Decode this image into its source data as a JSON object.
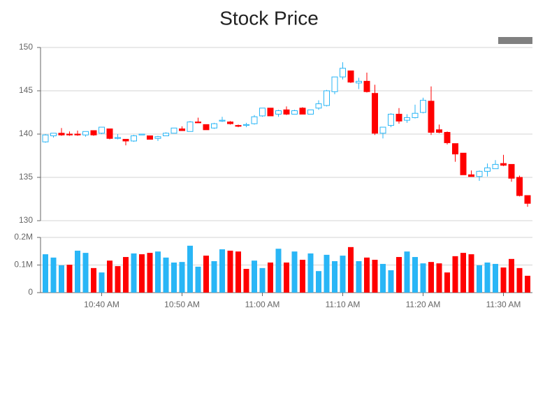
{
  "chart_data": {
    "type": "candlestick",
    "title": "Stock Price",
    "categories": [
      null,
      null,
      null,
      null,
      null,
      null,
      null,
      "10:40 AM",
      null,
      null,
      null,
      null,
      null,
      null,
      null,
      null,
      null,
      "10:50 AM",
      null,
      null,
      null,
      null,
      null,
      null,
      null,
      null,
      null,
      "11:00 AM",
      null,
      null,
      null,
      null,
      null,
      null,
      null,
      null,
      null,
      "11:10 AM",
      null,
      null,
      null,
      null,
      null,
      null,
      null,
      null,
      null,
      "11:20 AM",
      null,
      null,
      null,
      null,
      null,
      null,
      null,
      null,
      null,
      "11:30 AM",
      null,
      null,
      null
    ],
    "open": [
      139.1,
      139.8,
      140.1,
      140,
      140,
      139.9,
      140.4,
      140.1,
      140.6,
      139.5,
      139.4,
      139.2,
      139.9,
      139.8,
      139.5,
      139.8,
      140.1,
      140.6,
      140.3,
      141.4,
      141.1,
      140.7,
      141.5,
      141.4,
      141,
      141,
      141.2,
      142.1,
      143,
      142.3,
      142.8,
      142.3,
      143,
      142.3,
      143,
      143.3,
      144.9,
      146.6,
      147.3,
      145.9,
      146.1,
      144.7,
      140.1,
      141,
      142.3,
      141.6,
      141.9,
      142.5,
      143.8,
      140.5,
      140.2,
      138.9,
      137.8,
      135.3,
      135.1,
      135.7,
      136,
      136.6,
      136.5,
      135,
      132.9
    ],
    "high": [
      140,
      140.1,
      140.7,
      140.3,
      140.4,
      140.3,
      140.4,
      140.8,
      140.6,
      140,
      139.4,
      139.9,
      140,
      139.8,
      139.8,
      140.2,
      140.7,
      140.9,
      141.5,
      141.9,
      141.1,
      141.3,
      142,
      141.5,
      141.1,
      141.3,
      142.2,
      143,
      143,
      142.8,
      143.2,
      142.8,
      143.1,
      142.8,
      143.9,
      145.1,
      146.6,
      148.3,
      147.3,
      146.5,
      147.1,
      145.7,
      140.8,
      142.4,
      143,
      142.3,
      143.4,
      144.2,
      145.5,
      141.1,
      140.3,
      138.9,
      137.8,
      135.8,
      135.8,
      136.6,
      137,
      137.6,
      136.5,
      135.2,
      132.9
    ],
    "low": [
      139,
      139.6,
      139.8,
      139.8,
      139.8,
      139.7,
      139.8,
      140,
      139.4,
      139.4,
      138.7,
      139.1,
      139.9,
      139.4,
      139.2,
      139.8,
      140.1,
      140.4,
      140.3,
      141.3,
      140.5,
      140.6,
      141.4,
      141.1,
      140.8,
      140.8,
      141.1,
      142,
      142.1,
      142,
      142.2,
      142.3,
      142.3,
      142.3,
      142.8,
      143.2,
      144.6,
      146.3,
      145.9,
      145.2,
      144.8,
      139.9,
      139.5,
      140.8,
      141.2,
      141.3,
      141.8,
      142.4,
      139.9,
      140.1,
      138.8,
      136.8,
      135.3,
      135.1,
      134.6,
      135.1,
      136,
      136.3,
      134.5,
      132.8,
      131.6
    ],
    "close": [
      139.9,
      140.1,
      139.9,
      139.9,
      139.9,
      140.3,
      139.9,
      140.8,
      139.5,
      139.6,
      139.2,
      139.8,
      140,
      139.4,
      139.7,
      140.1,
      140.7,
      140.4,
      141.4,
      141.3,
      140.5,
      141.2,
      141.6,
      141.2,
      140.9,
      141.1,
      142,
      143,
      142.1,
      142.7,
      142.3,
      142.7,
      142.3,
      142.8,
      143.5,
      145,
      146.6,
      147.6,
      146,
      146.1,
      144.9,
      140.1,
      140.8,
      142.3,
      141.5,
      141.9,
      142.4,
      143.9,
      140.2,
      140.2,
      139,
      137.7,
      135.3,
      135.1,
      135.7,
      136.1,
      136.5,
      136.4,
      134.9,
      132.9,
      132
    ],
    "up_color": "#29b6f6",
    "down_color": "#ff0000",
    "ylim": [
      130,
      150
    ],
    "yticks": [
      130,
      135,
      140,
      145,
      150
    ],
    "grid": true,
    "volume": {
      "values": [
        139000,
        127000,
        99000,
        101000,
        152000,
        144000,
        89000,
        73000,
        116000,
        96000,
        129000,
        142000,
        139000,
        144000,
        149000,
        127000,
        109000,
        111000,
        170000,
        94000,
        134000,
        114000,
        157000,
        152000,
        149000,
        86000,
        116000,
        89000,
        109000,
        159000,
        109000,
        149000,
        119000,
        142000,
        78000,
        137000,
        114000,
        134000,
        165000,
        114000,
        127000,
        119000,
        104000,
        81000,
        129000,
        149000,
        129000,
        106000,
        111000,
        106000,
        73000,
        132000,
        144000,
        139000,
        99000,
        109000,
        104000,
        91000,
        122000,
        89000,
        61000
      ],
      "colors": [
        "#29b6f6",
        "#29b6f6",
        "#29b6f6",
        "#ff0000",
        "#29b6f6",
        "#29b6f6",
        "#ff0000",
        "#29b6f6",
        "#ff0000",
        "#ff0000",
        "#ff0000",
        "#29b6f6",
        "#ff0000",
        "#ff0000",
        "#29b6f6",
        "#29b6f6",
        "#29b6f6",
        "#29b6f6",
        "#29b6f6",
        "#29b6f6",
        "#ff0000",
        "#29b6f6",
        "#29b6f6",
        "#ff0000",
        "#ff0000",
        "#ff0000",
        "#29b6f6",
        "#29b6f6",
        "#ff0000",
        "#29b6f6",
        "#ff0000",
        "#29b6f6",
        "#ff0000",
        "#29b6f6",
        "#29b6f6",
        "#29b6f6",
        "#29b6f6",
        "#29b6f6",
        "#ff0000",
        "#29b6f6",
        "#ff0000",
        "#ff0000",
        "#29b6f6",
        "#29b6f6",
        "#ff0000",
        "#29b6f6",
        "#29b6f6",
        "#29b6f6",
        "#ff0000",
        "#ff0000",
        "#ff0000",
        "#ff0000",
        "#ff0000",
        "#ff0000",
        "#29b6f6",
        "#29b6f6",
        "#29b6f6",
        "#ff0000",
        "#ff0000",
        "#ff0000",
        "#ff0000"
      ],
      "ylim": [
        0,
        200000
      ],
      "yticks": [
        0,
        {
          "value": 100000,
          "label": "0.1M"
        },
        {
          "value": 200000,
          "label": "0.2M"
        }
      ]
    }
  }
}
